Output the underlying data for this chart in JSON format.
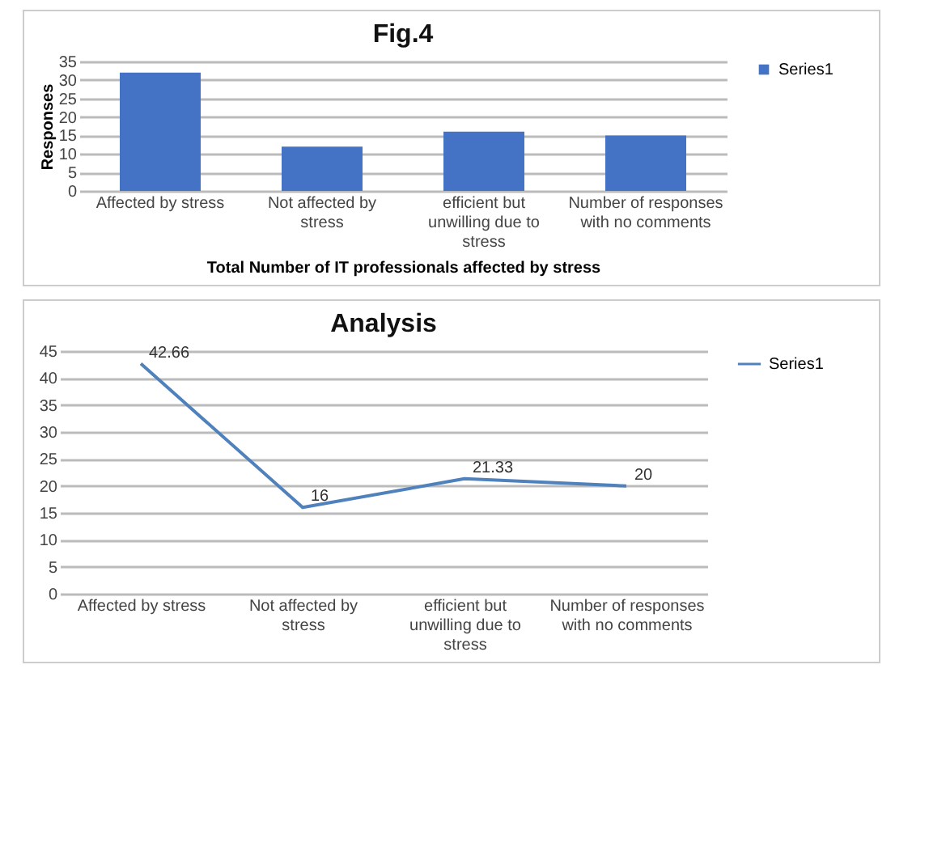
{
  "chart_data": [
    {
      "type": "bar",
      "title": "Fig.4",
      "xlabel": "Total Number of IT professionals affected by stress",
      "ylabel": "Responses",
      "categories": [
        "Affected by stress",
        "Not affected by stress",
        "efficient but unwilling due to stress",
        "Number of responses with no comments"
      ],
      "series": [
        {
          "name": "Series1",
          "color": "#4472c4",
          "values": [
            32,
            12,
            16,
            15
          ]
        }
      ],
      "ylim": [
        0,
        35
      ],
      "yticks": [
        0,
        5,
        10,
        15,
        20,
        25,
        30,
        35
      ],
      "grid": "y",
      "legend": "right"
    },
    {
      "type": "line",
      "title": "Analysis",
      "categories": [
        "Affected by stress",
        "Not affected by stress",
        "efficient but unwilling due to stress",
        "Number of responses with no comments"
      ],
      "series": [
        {
          "name": "Series1",
          "color": "#4f81bd",
          "values": [
            42.66,
            16,
            21.33,
            20
          ]
        }
      ],
      "ylim": [
        0,
        45
      ],
      "yticks": [
        0,
        5,
        10,
        15,
        20,
        25,
        30,
        35,
        40,
        45
      ],
      "grid": "y",
      "legend": "right",
      "data_labels": true,
      "marker": "none"
    }
  ]
}
